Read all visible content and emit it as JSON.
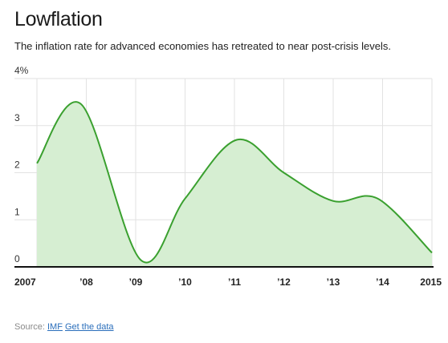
{
  "header": {
    "title": "Lowflation",
    "subtitle": "The inflation rate for advanced economies has retreated to near post-crisis levels."
  },
  "footer": {
    "source_label": "Source:",
    "source_link": "IMF",
    "data_link": "Get the data"
  },
  "colors": {
    "line": "#3aa02f",
    "fill": "#d6eed2",
    "grid": "#e2e2e2",
    "axis": "#111111"
  },
  "chart_data": {
    "type": "area",
    "title": "Lowflation",
    "xlabel": "",
    "ylabel": "",
    "y_ticks": [
      "4%",
      "3",
      "2",
      "1",
      "0"
    ],
    "y_tick_values": [
      4,
      3,
      2,
      1,
      0
    ],
    "ylim": [
      0,
      4
    ],
    "x_tick_labels": [
      "2007",
      "’08",
      "’09",
      "’10",
      "’11",
      "’12",
      "’13",
      "’14",
      "2015"
    ],
    "x_tick_values": [
      2007,
      2008,
      2009,
      2010,
      2011,
      2012,
      2013,
      2014,
      2015
    ],
    "xlim": [
      2007,
      2015
    ],
    "grid": true,
    "series": [
      {
        "x": [
          2007,
          2007.9,
          2009.1,
          2010,
          2011.05,
          2012,
          2013,
          2013.9,
          2015
        ],
        "values": [
          2.2,
          3.45,
          0.15,
          1.45,
          2.7,
          2.0,
          1.4,
          1.45,
          0.3
        ]
      }
    ]
  }
}
